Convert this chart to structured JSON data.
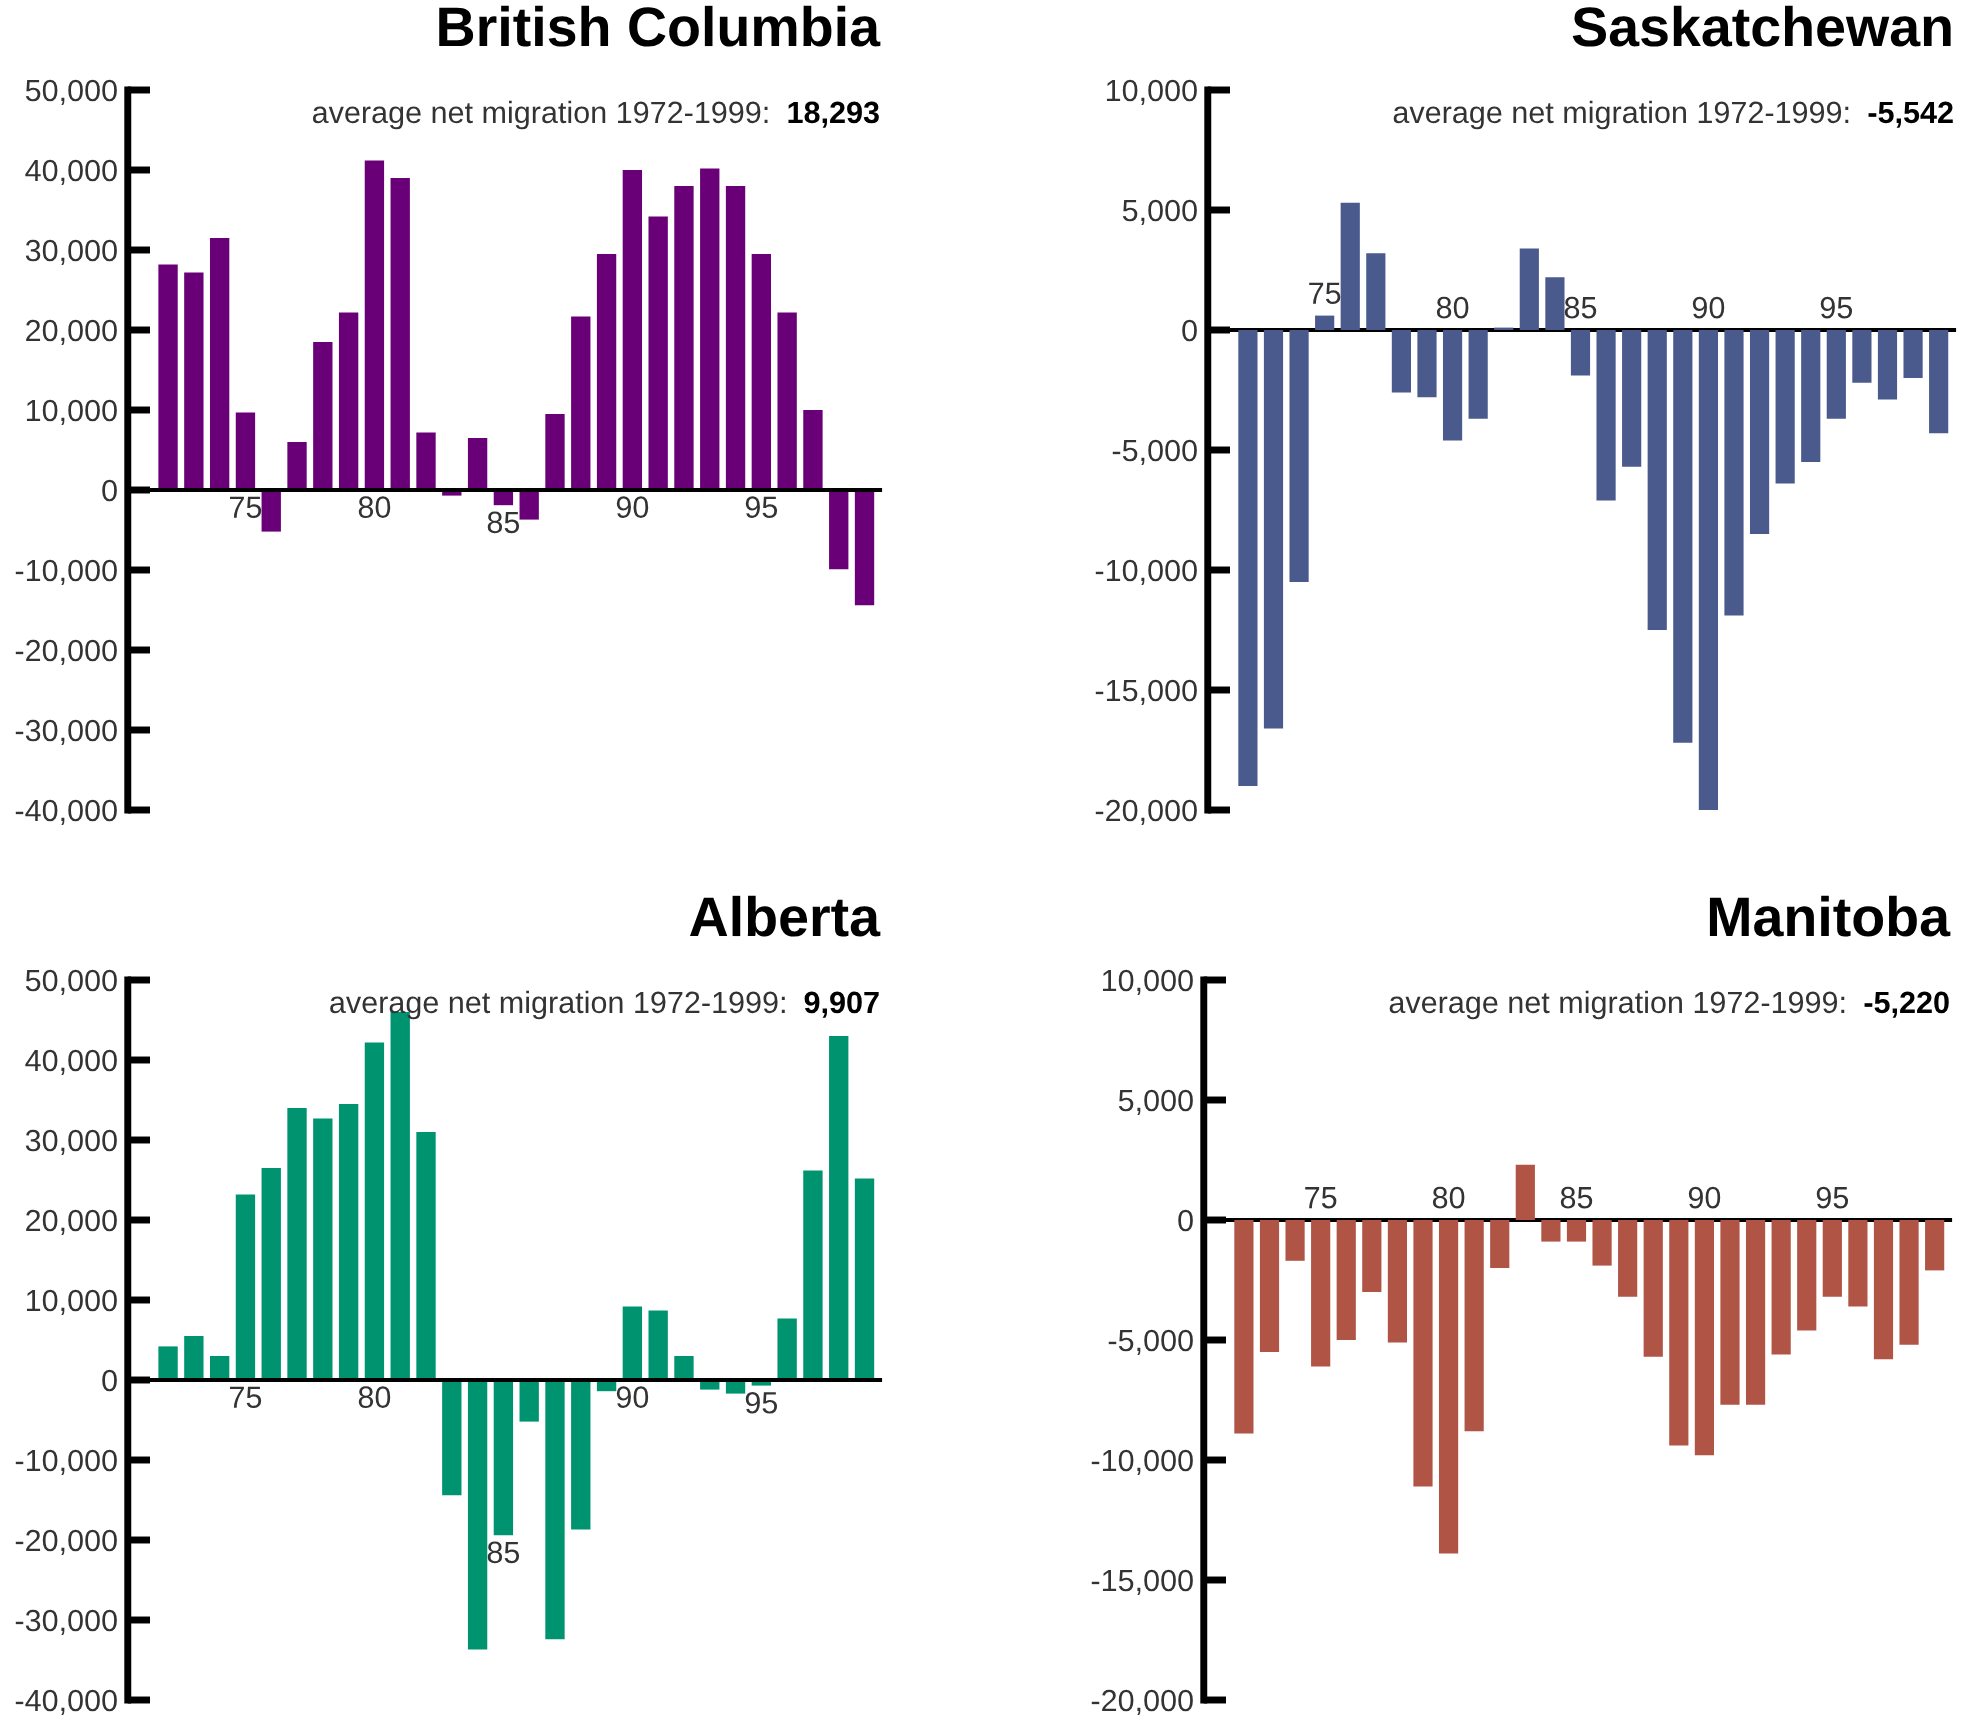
{
  "chart_data": [
    {
      "type": "bar",
      "title": "British Columbia",
      "subtitle": "average net migration 1972-1999:",
      "annotations": [
        "18,293"
      ],
      "categories": [
        null,
        null,
        null,
        "75",
        null,
        null,
        null,
        null,
        "80",
        null,
        null,
        null,
        null,
        "85",
        null,
        null,
        null,
        null,
        "90",
        null,
        null,
        null,
        null,
        "95",
        null,
        null,
        null,
        null
      ],
      "series": [
        {
          "color": "#6a0077",
          "values": [
            28200,
            27200,
            31500,
            9700,
            -5200,
            6000,
            18500,
            22200,
            41200,
            39000,
            7200,
            -700,
            6500,
            -1900,
            -3700,
            9500,
            21700,
            29500,
            40000,
            34200,
            38000,
            40200,
            38000,
            29500,
            22200,
            10000,
            -9900,
            -14400
          ]
        }
      ],
      "ylim": [
        -40000,
        50000
      ],
      "yticks": [
        {
          "value": -40000,
          "label": "-40,000"
        },
        {
          "value": -30000,
          "label": "-30,000"
        },
        {
          "value": -20000,
          "label": "-20,000"
        },
        {
          "value": -10000,
          "label": "-10,000"
        },
        0,
        {
          "value": 10000,
          "label": "10,000"
        },
        {
          "value": 20000,
          "label": "20,000"
        },
        {
          "value": 30000,
          "label": "30,000"
        },
        {
          "value": 40000,
          "label": "40,000"
        },
        {
          "value": 50000,
          "label": "50,000"
        }
      ],
      "grid": false,
      "legend": false
    },
    {
      "type": "bar",
      "title": "Saskatchewan",
      "subtitle": "average net migration 1972-1999:",
      "annotations": [
        "-5,542"
      ],
      "categories": [
        null,
        null,
        null,
        "75",
        null,
        null,
        null,
        null,
        "80",
        null,
        null,
        null,
        null,
        "85",
        null,
        null,
        null,
        null,
        "90",
        null,
        null,
        null,
        null,
        "95",
        null,
        null,
        null,
        null
      ],
      "series": [
        {
          "color": "#4a5a8c",
          "values": [
            -19000,
            -16600,
            -10500,
            600,
            5300,
            3200,
            -2600,
            -2800,
            -4600,
            -3700,
            100,
            3400,
            2200,
            -1900,
            -7100,
            -5700,
            -12500,
            -17200,
            -20000,
            -11900,
            -8500,
            -6400,
            -5500,
            -3700,
            -2200,
            -2900,
            -2000,
            -4300
          ]
        }
      ],
      "ylim": [
        -20000,
        10000
      ],
      "yticks": [
        {
          "value": -20000,
          "label": "-20,000"
        },
        {
          "value": -15000,
          "label": "-15,000"
        },
        {
          "value": -10000,
          "label": "-10,000"
        },
        {
          "value": -5000,
          "label": "-5,000"
        },
        0,
        {
          "value": 5000,
          "label": "5,000"
        },
        {
          "value": 10000,
          "label": "10,000"
        }
      ],
      "grid": false,
      "legend": false
    },
    {
      "type": "bar",
      "title": "Alberta",
      "subtitle": "average net migration 1972-1999:",
      "annotations": [
        "9,907"
      ],
      "categories": [
        null,
        null,
        null,
        "75",
        null,
        null,
        null,
        null,
        "80",
        null,
        null,
        null,
        null,
        "85",
        null,
        null,
        null,
        null,
        "90",
        null,
        null,
        null,
        null,
        "95",
        null,
        null,
        null,
        null
      ],
      "series": [
        {
          "color": "#009370",
          "values": [
            4200,
            5500,
            3000,
            23200,
            26500,
            34000,
            32700,
            34500,
            42200,
            46000,
            31000,
            -14400,
            -33700,
            -19400,
            -5200,
            -32400,
            -18700,
            -1400,
            9200,
            8700,
            3000,
            -1200,
            -1700,
            -700,
            7700,
            26200,
            43000,
            25200
          ]
        }
      ],
      "ylim": [
        -40000,
        50000
      ],
      "yticks": [
        {
          "value": -40000,
          "label": "-40,000"
        },
        {
          "value": -30000,
          "label": "-30,000"
        },
        {
          "value": -20000,
          "label": "-20,000"
        },
        {
          "value": -10000,
          "label": "-10,000"
        },
        0,
        {
          "value": 10000,
          "label": "10,000"
        },
        {
          "value": 20000,
          "label": "20,000"
        },
        {
          "value": 30000,
          "label": "30,000"
        },
        {
          "value": 40000,
          "label": "40,000"
        },
        {
          "value": 50000,
          "label": "50,000"
        }
      ],
      "grid": false,
      "legend": false
    },
    {
      "type": "bar",
      "title": "Manitoba",
      "subtitle": "average net migration 1972-1999:",
      "annotations": [
        "-5,220"
      ],
      "categories": [
        null,
        null,
        null,
        "75",
        null,
        null,
        null,
        null,
        "80",
        null,
        null,
        null,
        null,
        "85",
        null,
        null,
        null,
        null,
        "90",
        null,
        null,
        null,
        null,
        "95",
        null,
        null,
        null,
        null
      ],
      "series": [
        {
          "color": "#b05446",
          "values": [
            -8900,
            -5500,
            -1700,
            -6100,
            -5000,
            -3000,
            -5100,
            -11100,
            -13900,
            -8800,
            -2000,
            2300,
            -900,
            -900,
            -1900,
            -3200,
            -5700,
            -9400,
            -9800,
            -7700,
            -7700,
            -5600,
            -4600,
            -3200,
            -3600,
            -5800,
            -5200,
            -2100
          ]
        }
      ],
      "ylim": [
        -20000,
        10000
      ],
      "yticks": [
        {
          "value": -20000,
          "label": "-20,000"
        },
        {
          "value": -15000,
          "label": "-15,000"
        },
        {
          "value": -10000,
          "label": "-10,000"
        },
        {
          "value": -5000,
          "label": "-5,000"
        },
        0,
        {
          "value": 5000,
          "label": "5,000"
        },
        {
          "value": 10000,
          "label": "10,000"
        }
      ],
      "grid": false,
      "legend": false
    }
  ]
}
